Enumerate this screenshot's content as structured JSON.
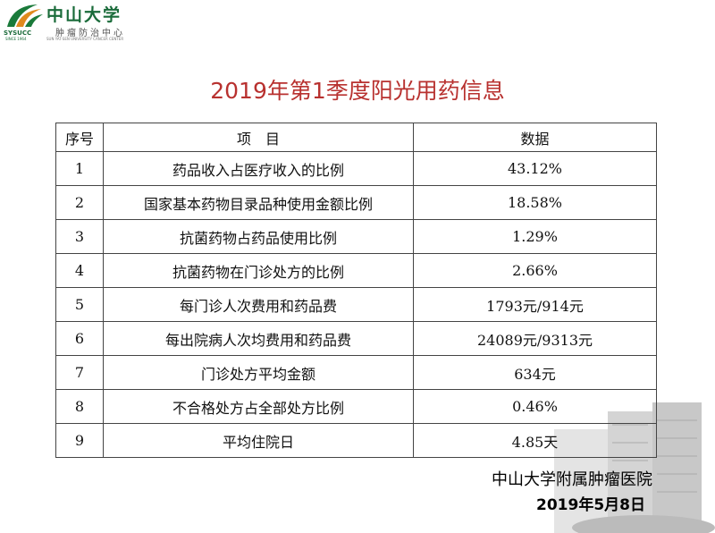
{
  "logo": {
    "name": "中山大学",
    "subtitle": "肿瘤防治中心",
    "abbr": "SYSUCC",
    "since": "SINCE 1964",
    "english": "SUN YAT-SEN UNIVERSITY CANCER CENTER"
  },
  "title": "2019年第1季度阳光用药信息",
  "table": {
    "header": [
      "序号",
      "项　目",
      "数据"
    ],
    "rows": [
      [
        "1",
        "药品收入占医疗收入的比例",
        "43.12%"
      ],
      [
        "2",
        "国家基本药物目录品种使用金额比例",
        "18.58%"
      ],
      [
        "3",
        "抗菌药物占药品使用比例",
        "1.29%"
      ],
      [
        "4",
        "抗菌药物在门诊处方的比例",
        "2.66%"
      ],
      [
        "5",
        "每门诊人次费用和药品费",
        "1793元/914元"
      ],
      [
        "6",
        "每出院病人次均费用和药品费",
        "24089元/9313元"
      ],
      [
        "7",
        "门诊处方平均金额",
        "634元"
      ],
      [
        "8",
        "不合格处方占全部处方比例",
        "0.46%"
      ],
      [
        "9",
        "平均住院日",
        "4.85天"
      ]
    ]
  },
  "footer": {
    "org": "中山大学附属肿瘤医院",
    "date": "2019年5月8日"
  }
}
